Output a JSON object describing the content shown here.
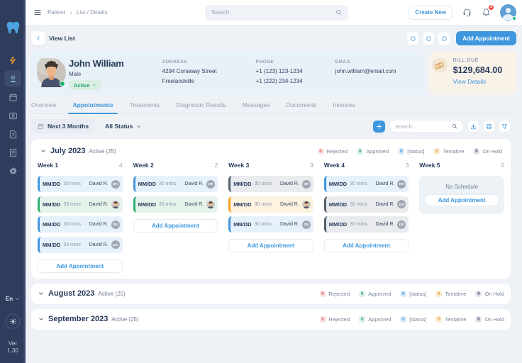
{
  "colors": {
    "sidebar": "#2e3d5c",
    "accent_blue": "#3e97de",
    "page_bg": "#eef1f5",
    "patient_card_bg": "#e9f1f8",
    "bill_card_bg": "#f9f2e9",
    "status_green": "#27a36a",
    "rejected_red": "#e25c5c",
    "approved_green": "#2fa772",
    "tentative_orange": "#ec9f38"
  },
  "sidebar": {
    "logo_icon": "tooth-icon",
    "items": [
      {
        "name": "quick-actions",
        "icon": "bolt-icon",
        "active": false
      },
      {
        "name": "patients",
        "icon": "patient-icon",
        "active": true
      },
      {
        "name": "appointments",
        "icon": "calendar-icon",
        "active": false
      },
      {
        "name": "staff",
        "icon": "id-card-icon",
        "active": false
      },
      {
        "name": "invoices",
        "icon": "file-invoice-icon",
        "active": false
      },
      {
        "name": "reports",
        "icon": "notes-icon",
        "active": false
      },
      {
        "name": "settings",
        "icon": "gear-icon",
        "active": false
      }
    ],
    "language": "En",
    "version_label": "Ver",
    "version": "1.30"
  },
  "header": {
    "breadcrumb": {
      "root": "Patient",
      "current": "List / Details"
    },
    "search_placeholder": "Search",
    "create_new_label": "Create New",
    "notification_count": "3"
  },
  "pagebar": {
    "back_label": "View List",
    "add_appointment_label": "Add Appointment"
  },
  "patient": {
    "name": "John William",
    "gender": "Male",
    "status": "Active",
    "address_label": "ADDRESS",
    "address_line1": "4294 Conaway Street",
    "address_line2": "Freelandville",
    "phone_label": "PHONE",
    "phone1": "+1 (123) 123-1234",
    "phone2": "+1 (222) 234-1234",
    "email_label": "EMAIL",
    "email": "john.william@email.com"
  },
  "billing": {
    "label": "BILL DUE",
    "amount": "$129,684.00",
    "link_label": "View Details"
  },
  "tabs": [
    {
      "label": "Overview",
      "active": false
    },
    {
      "label": "Appointments",
      "active": true
    },
    {
      "label": "Treatments",
      "active": false
    },
    {
      "label": "Diagnostic Results",
      "active": false
    },
    {
      "label": "Messages",
      "active": false
    },
    {
      "label": "Documents",
      "active": false
    },
    {
      "label": "Invoices",
      "active": false
    }
  ],
  "filters": {
    "period": "Next 3 Months",
    "status": "All Status",
    "search_placeholder": "Search..."
  },
  "status_legend": [
    {
      "count": "0",
      "label": "Rejected",
      "key": "rejected"
    },
    {
      "count": "0",
      "label": "Approved",
      "key": "approved"
    },
    {
      "count": "0",
      "label": "[status]",
      "key": "status"
    },
    {
      "count": "0",
      "label": "Tentative",
      "key": "tentative"
    },
    {
      "count": "0",
      "label": "On Hold",
      "key": "onhold"
    }
  ],
  "months": [
    {
      "title": "July 2023",
      "active_label": "Active (25)",
      "expanded": true,
      "weeks": [
        {
          "label": "Week 1",
          "count": "4",
          "add_label": "Add Appointment",
          "appointments": [
            {
              "date": "MM/DD",
              "duration": "30 mins",
              "doctor": "David R.",
              "variant": "blue",
              "avatar": "initials",
              "avatar_initials": "DR"
            },
            {
              "date": "MM/DD",
              "duration": "30 mins",
              "doctor": "David R.",
              "variant": "green",
              "avatar": "photo",
              "avatar_initials": "DR"
            },
            {
              "date": "MM/DD",
              "duration": "30 mins",
              "doctor": "David R.",
              "variant": "blue",
              "avatar": "initials",
              "avatar_initials": "DR"
            },
            {
              "date": "MM/DD",
              "duration": "30 mins",
              "doctor": "David R.",
              "variant": "blue",
              "avatar": "initials",
              "avatar_initials": "DR"
            }
          ]
        },
        {
          "label": "Week 2",
          "count": "2",
          "add_label": "Add Appointment",
          "appointments": [
            {
              "date": "MM/DD",
              "duration": "30 mins",
              "doctor": "David R.",
              "variant": "blue",
              "avatar": "initials",
              "avatar_initials": "DR"
            },
            {
              "date": "MM/DD",
              "duration": "30 mins",
              "doctor": "David R.",
              "variant": "green",
              "avatar": "photo",
              "avatar_initials": "DR"
            }
          ]
        },
        {
          "label": "Week 3",
          "count": "3",
          "add_label": "Add Appointment",
          "appointments": [
            {
              "date": "MM/DD",
              "duration": "30 mins",
              "doctor": "David R.",
              "variant": "dark",
              "avatar": "initials",
              "avatar_initials": "DR"
            },
            {
              "date": "MM/DD",
              "duration": "30 mins",
              "doctor": "David R.",
              "variant": "orange",
              "avatar": "photo",
              "avatar_initials": "DR"
            },
            {
              "date": "MM/DD",
              "duration": "30 mins",
              "doctor": "David R.",
              "variant": "blue",
              "avatar": "initials",
              "avatar_initials": "DR"
            }
          ]
        },
        {
          "label": "Week 4",
          "count": "3",
          "add_label": "Add Appointment",
          "appointments": [
            {
              "date": "MM/DD",
              "duration": "30 mins",
              "doctor": "David R.",
              "variant": "blue",
              "avatar": "initials",
              "avatar_initials": "DR"
            },
            {
              "date": "MM/DD",
              "duration": "30 mins",
              "doctor": "David R.",
              "variant": "dark",
              "avatar": "initials",
              "avatar_initials": "DR"
            },
            {
              "date": "MM/DD",
              "duration": "30 mins",
              "doctor": "David R.",
              "variant": "dark",
              "avatar": "initials",
              "avatar_initials": "DR"
            }
          ]
        },
        {
          "label": "Week 5",
          "count": "0",
          "add_label": "Add Appointment",
          "empty_label": "No Schedule",
          "appointments": []
        }
      ]
    },
    {
      "title": "August 2023",
      "active_label": "Active (25)",
      "expanded": false
    },
    {
      "title": "September 2023",
      "active_label": "Active (25)",
      "expanded": false
    }
  ]
}
